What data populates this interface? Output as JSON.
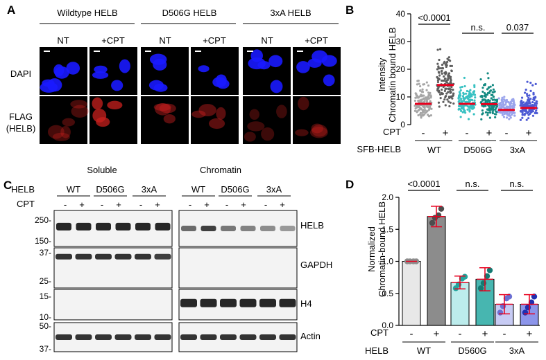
{
  "panels": {
    "a": {
      "letter": "A",
      "groups": [
        "Wildtype HELB",
        "D506G HELB",
        "3xA HELB"
      ],
      "conditions": [
        "NT",
        "+CPT"
      ],
      "rows": [
        "DAPI",
        "FLAG",
        "(HELB)"
      ]
    },
    "b": {
      "letter": "B",
      "ylabel_line1": "Intensity",
      "ylabel_line2": "Chromatin bound HELB",
      "cpt_label": "CPT",
      "sfb_label": "SFB-HELB",
      "minus": "-",
      "plus": "+",
      "pvalues": [
        "<0.0001",
        "n.s.",
        "0.037"
      ],
      "group_labels": [
        "WT",
        "D506G",
        "3xA"
      ]
    },
    "c": {
      "letter": "C",
      "soluble_title": "Soluble",
      "chromatin_title": "Chromatin",
      "helb_label": "HELB",
      "cpt_label": "CPT",
      "group_labels": [
        "WT",
        "D506G",
        "3xA"
      ],
      "minus": "-",
      "plus": "+",
      "mw_markers": [
        "250-",
        "150-",
        "37-",
        "25-",
        "15-",
        "10-",
        "50-",
        "37-"
      ],
      "blot_labels": [
        "HELB",
        "GAPDH",
        "H4",
        "Actin"
      ]
    },
    "d": {
      "letter": "D",
      "ylabel_line1": "Normalized",
      "ylabel_line2": "Chromatin-bound HELB",
      "cpt_label": "CPT",
      "helb_label": "HELB",
      "minus": "-",
      "plus": "+",
      "pvalues": [
        "<0.0001",
        "n.s.",
        "n.s."
      ],
      "group_labels": [
        "WT",
        "D560G",
        "3xA"
      ]
    }
  },
  "chart_data": [
    {
      "panel": "B",
      "type": "scatter",
      "ylabel": "Intensity Chromatin bound HELB",
      "ylim": [
        0,
        40
      ],
      "yticks": [
        0,
        10,
        20,
        30,
        40
      ],
      "categories": [
        "WT -",
        "WT +",
        "D506G -",
        "D506G +",
        "3xA -",
        "3xA +"
      ],
      "medians": [
        7.5,
        14.3,
        7.5,
        7.4,
        5.3,
        6.0
      ],
      "colors": [
        "#a6a6a6",
        "#5e5e5e",
        "#38c1c2",
        "#148a82",
        "#9aa4ec",
        "#4c5ad4"
      ]
    },
    {
      "panel": "D",
      "type": "bar",
      "ylabel": "Normalized Chromatin-bound HELB",
      "ylim": [
        0,
        2.0
      ],
      "yticks": [
        0.0,
        0.5,
        1.0,
        1.5,
        2.0
      ],
      "categories": [
        "WT -",
        "WT +",
        "D560G -",
        "D560G +",
        "3xA -",
        "3xA +"
      ],
      "values": [
        1.0,
        1.7,
        0.67,
        0.72,
        0.33,
        0.33
      ],
      "errors": [
        0.0,
        0.16,
        0.1,
        0.18,
        0.15,
        0.15
      ],
      "points": [
        [
          1.0,
          1.0,
          1.0,
          1.0
        ],
        [
          1.6,
          1.68,
          1.72,
          1.82
        ],
        [
          0.58,
          0.64,
          0.73,
          0.76
        ],
        [
          0.58,
          0.66,
          0.77,
          0.86
        ],
        [
          0.2,
          0.3,
          0.42,
          0.45
        ],
        [
          0.2,
          0.28,
          0.36,
          0.45
        ]
      ],
      "bar_colors": [
        "#e8e8e8",
        "#8c8c8c",
        "#bcecec",
        "#47b6b0",
        "#c7cbf4",
        "#8c95ea"
      ],
      "point_colors": [
        "#8c8c8c",
        "#4d4d4d",
        "#23a59d",
        "#137a72",
        "#6b6fd2",
        "#1f2fb0"
      ]
    }
  ]
}
